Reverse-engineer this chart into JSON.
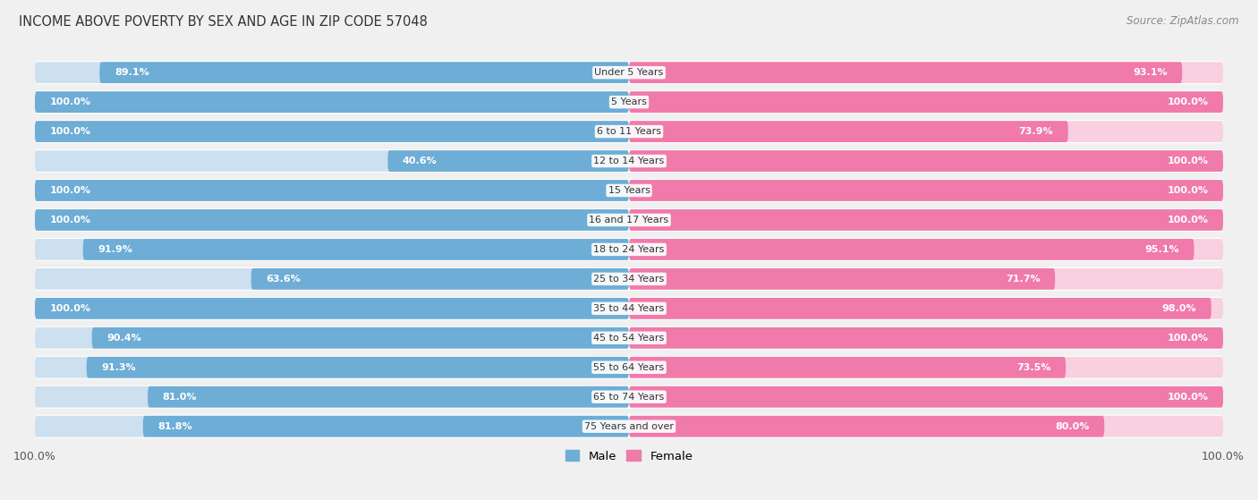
{
  "title": "INCOME ABOVE POVERTY BY SEX AND AGE IN ZIP CODE 57048",
  "source": "Source: ZipAtlas.com",
  "categories": [
    "Under 5 Years",
    "5 Years",
    "6 to 11 Years",
    "12 to 14 Years",
    "15 Years",
    "16 and 17 Years",
    "18 to 24 Years",
    "25 to 34 Years",
    "35 to 44 Years",
    "45 to 54 Years",
    "55 to 64 Years",
    "65 to 74 Years",
    "75 Years and over"
  ],
  "male_values": [
    89.1,
    100.0,
    100.0,
    40.6,
    100.0,
    100.0,
    91.9,
    63.6,
    100.0,
    90.4,
    91.3,
    81.0,
    81.8
  ],
  "female_values": [
    93.1,
    100.0,
    73.9,
    100.0,
    100.0,
    100.0,
    95.1,
    71.7,
    98.0,
    100.0,
    73.5,
    100.0,
    80.0
  ],
  "male_color": "#6dadd6",
  "female_color": "#f07aaa",
  "male_color_light": "#cce0f0",
  "female_color_light": "#f9d0e0",
  "row_bg_color": "#ebebeb",
  "background_color": "#f0f0f0",
  "bar_height": 0.72,
  "xlim_left": -100,
  "xlim_right": 100,
  "legend_male": "Male",
  "legend_female": "Female",
  "xtick_left": "100.0%",
  "xtick_right": "100.0%"
}
